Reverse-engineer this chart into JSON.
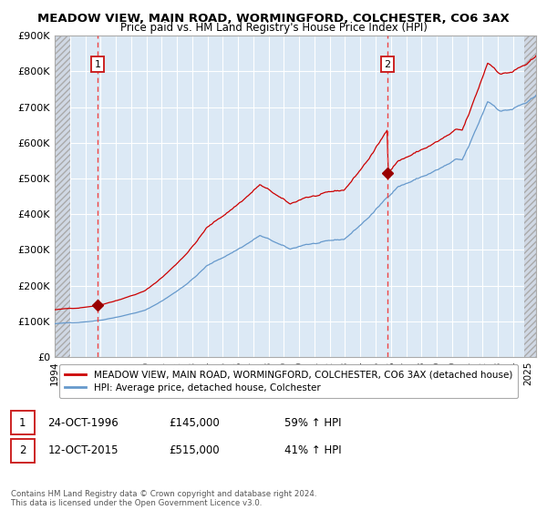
{
  "title1": "MEADOW VIEW, MAIN ROAD, WORMINGFORD, COLCHESTER, CO6 3AX",
  "title2": "Price paid vs. HM Land Registry's House Price Index (HPI)",
  "ylim": [
    0,
    900000
  ],
  "xlim_start": 1994.0,
  "xlim_end": 2025.5,
  "yticks": [
    0,
    100000,
    200000,
    300000,
    400000,
    500000,
    600000,
    700000,
    800000,
    900000
  ],
  "ytick_labels": [
    "£0",
    "£100K",
    "£200K",
    "£300K",
    "£400K",
    "£500K",
    "£600K",
    "£700K",
    "£800K",
    "£900K"
  ],
  "xticks": [
    1994,
    1995,
    1996,
    1997,
    1998,
    1999,
    2000,
    2001,
    2002,
    2003,
    2004,
    2005,
    2006,
    2007,
    2008,
    2009,
    2010,
    2011,
    2012,
    2013,
    2014,
    2015,
    2016,
    2017,
    2018,
    2019,
    2020,
    2021,
    2022,
    2023,
    2024,
    2025
  ],
  "purchase1_x": 1996.81,
  "purchase1_y": 145000,
  "purchase2_x": 2015.78,
  "purchase2_y": 515000,
  "purchase1_date": "24-OCT-1996",
  "purchase1_price": "£145,000",
  "purchase1_hpi": "59% ↑ HPI",
  "purchase2_date": "12-OCT-2015",
  "purchase2_price": "£515,000",
  "purchase2_hpi": "41% ↑ HPI",
  "line1_color": "#cc0000",
  "line2_color": "#6699cc",
  "bg_color": "#dce9f5",
  "hatch_face_color": "#d0d8e4",
  "grid_color": "#ffffff",
  "vline_color": "#ee4444",
  "marker_color": "#990000",
  "box_edge_color": "#cc2222",
  "legend1": "MEADOW VIEW, MAIN ROAD, WORMINGFORD, COLCHESTER, CO6 3AX (detached house)",
  "legend2": "HPI: Average price, detached house, Colchester",
  "footnote": "Contains HM Land Registry data © Crown copyright and database right 2024.\nThis data is licensed under the Open Government Licence v3.0.",
  "hatch_left_end": 1995.0,
  "hatch_right_start": 2024.75
}
